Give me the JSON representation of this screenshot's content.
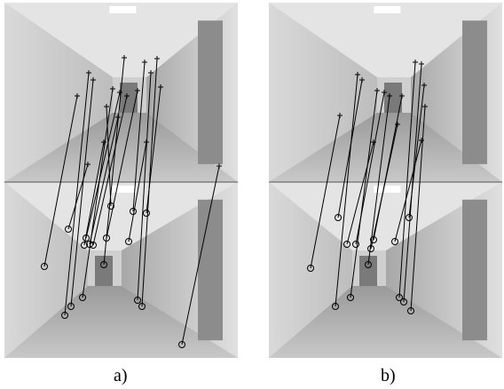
{
  "panels": [
    {
      "caption": "a)"
    },
    {
      "caption": "b)"
    }
  ]
}
